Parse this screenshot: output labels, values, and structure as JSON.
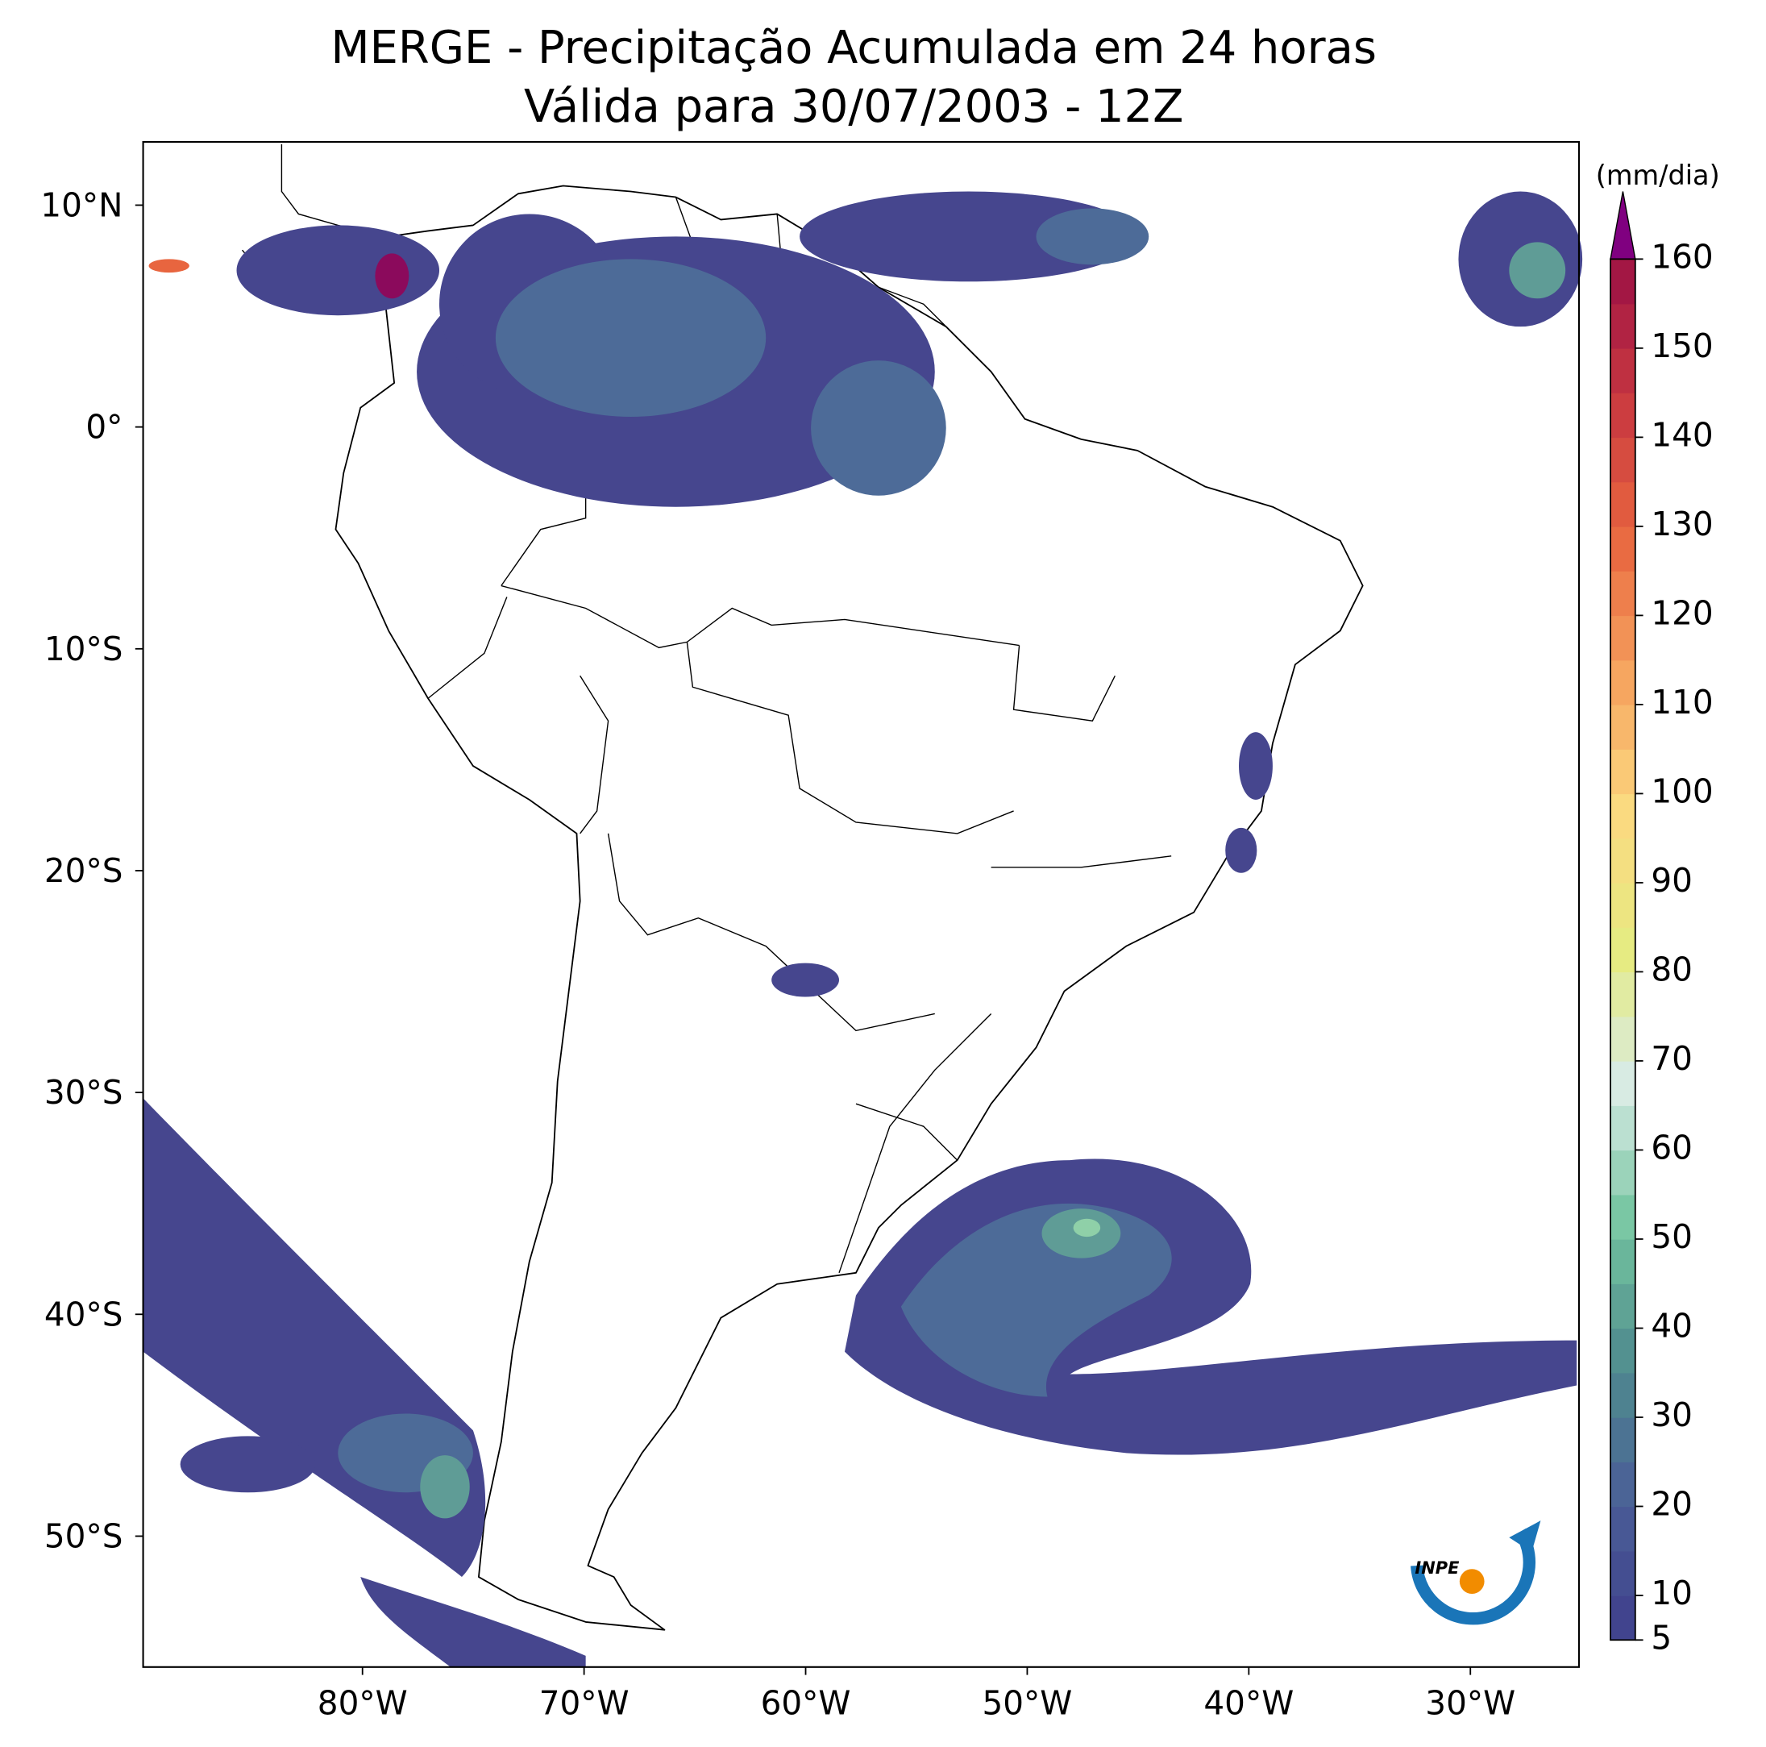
{
  "title": "MERGE - Precipitação Acumulada em 24 horas",
  "subtitle": "Válida para 30/07/2003 - 12Z",
  "map": {
    "xlim": [
      -89.9,
      -25.1
    ],
    "ylim": [
      -55.9,
      12.85
    ],
    "xticks": [
      {
        "value": -80,
        "label": "80°W"
      },
      {
        "value": -70,
        "label": "70°W"
      },
      {
        "value": -60,
        "label": "60°W"
      },
      {
        "value": -50,
        "label": "50°W"
      },
      {
        "value": -40,
        "label": "40°W"
      },
      {
        "value": -30,
        "label": "30°W"
      }
    ],
    "yticks": [
      {
        "value": 10,
        "label": "10°N"
      },
      {
        "value": 0,
        "label": "0°"
      },
      {
        "value": -10,
        "label": "10°S"
      },
      {
        "value": -20,
        "label": "20°S"
      },
      {
        "value": -30,
        "label": "30°S"
      },
      {
        "value": -40,
        "label": "40°S"
      },
      {
        "value": -50,
        "label": "50°S"
      }
    ]
  },
  "colorbar": {
    "unit": "(mm/dia)",
    "lim": [
      5,
      160
    ],
    "ticks": [
      5,
      10,
      20,
      30,
      40,
      50,
      60,
      70,
      80,
      90,
      100,
      110,
      120,
      130,
      140,
      150,
      160
    ],
    "colors": [
      "#3f3f8c",
      "#4a5e97",
      "#4f8c8e",
      "#74c49f",
      "#d8ebe6",
      "#e6eb82",
      "#fbd980",
      "#f6a25e",
      "#e8653f",
      "#c83740",
      "#9c1145"
    ],
    "extend_color": "#800080"
  },
  "logo": "INPE"
}
